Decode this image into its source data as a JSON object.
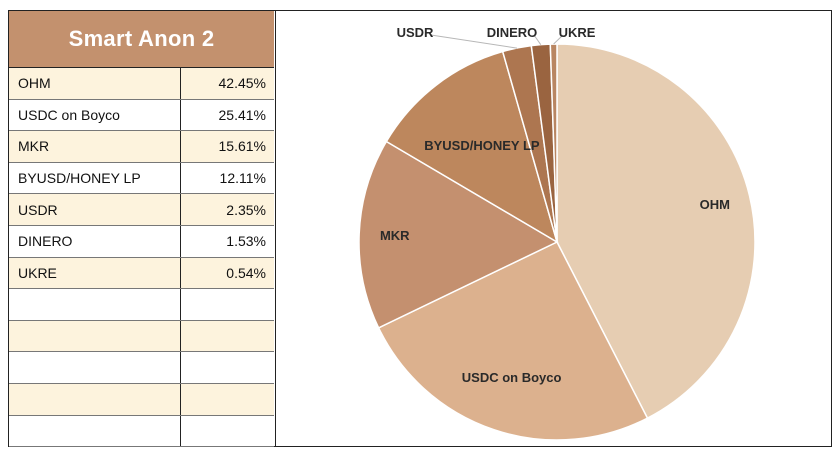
{
  "table": {
    "title": "Smart Anon 2",
    "rows": [
      {
        "name": "OHM",
        "value": "42.45%"
      },
      {
        "name": "USDC on Boyco",
        "value": "25.41%"
      },
      {
        "name": "MKR",
        "value": "15.61%"
      },
      {
        "name": "BYUSD/HONEY LP",
        "value": "12.11%"
      },
      {
        "name": "USDR",
        "value": "2.35%"
      },
      {
        "name": "DINERO",
        "value": "1.53%"
      },
      {
        "name": "UKRE",
        "value": "0.54%"
      },
      {
        "name": "",
        "value": ""
      },
      {
        "name": "",
        "value": ""
      },
      {
        "name": "",
        "value": ""
      },
      {
        "name": "",
        "value": ""
      },
      {
        "name": "",
        "value": ""
      }
    ]
  },
  "chart_data": {
    "type": "pie",
    "categories": [
      "OHM",
      "USDC on Boyco",
      "MKR",
      "BYUSD/HONEY LP",
      "USDR",
      "DINERO",
      "UKRE"
    ],
    "values": [
      42.45,
      25.41,
      15.61,
      12.11,
      2.35,
      1.53,
      0.54
    ],
    "colors": [
      "#e6cdb2",
      "#dcb18e",
      "#c4906f",
      "#bd875d",
      "#ad7650",
      "#9a6440",
      "#b98662"
    ],
    "start_angle": "top, clockwise",
    "legend": "none; labels drawn on slices"
  }
}
